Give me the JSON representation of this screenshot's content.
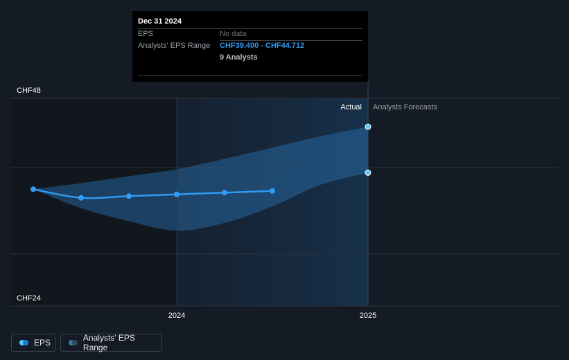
{
  "tooltip": {
    "date": "Dec 31 2024",
    "rows": [
      {
        "label": "EPS",
        "value": "No data"
      },
      {
        "label": "Analysts' EPS Range",
        "value": "CHF39.400 - CHF44.712",
        "sub": "9 Analysts"
      }
    ]
  },
  "legend": {
    "eps": {
      "label": "EPS",
      "color_primary": "#5bc8f5",
      "color_secondary": "#1a7fd4"
    },
    "range": {
      "label": "Analysts' EPS Range",
      "color_primary": "#3a7896",
      "color_secondary": "#2a4d63"
    }
  },
  "chart_data": {
    "type": "line",
    "title": "",
    "y_unit": "CHF",
    "ylim": [
      24,
      48
    ],
    "y_tick_labels": [
      {
        "value": 48,
        "label": "CHF48"
      },
      {
        "value": 24,
        "label": "CHF24"
      }
    ],
    "gridlines": [
      48,
      40,
      30,
      24
    ],
    "x_range": [
      2023.25,
      2026.0
    ],
    "x_tick_labels": [
      {
        "value": 2024.0,
        "label": "2024"
      },
      {
        "value": 2025.0,
        "label": "2025"
      }
    ],
    "region_labels": {
      "actual": "Actual",
      "forecast": "Analysts Forecasts"
    },
    "forecast_start": 2024.0,
    "forecast_end": 2025.0,
    "series": [
      {
        "name": "EPS",
        "color": "#2f9cf5",
        "points": [
          {
            "x": 2023.25,
            "y": 37.5
          },
          {
            "x": 2023.5,
            "y": 36.5
          },
          {
            "x": 2023.75,
            "y": 36.7
          },
          {
            "x": 2024.0,
            "y": 36.9
          },
          {
            "x": 2024.25,
            "y": 37.1
          },
          {
            "x": 2024.5,
            "y": 37.3
          }
        ]
      }
    ],
    "range": {
      "name": "Analysts' EPS Range",
      "upper": [
        {
          "x": 2023.25,
          "y": 37.5
        },
        {
          "x": 2023.5,
          "y": 38.2
        },
        {
          "x": 2023.75,
          "y": 39.0
        },
        {
          "x": 2024.0,
          "y": 39.8
        },
        {
          "x": 2024.25,
          "y": 41.0
        },
        {
          "x": 2024.5,
          "y": 42.3
        },
        {
          "x": 2024.75,
          "y": 43.6
        },
        {
          "x": 2025.0,
          "y": 44.712
        }
      ],
      "lower": [
        {
          "x": 2023.25,
          "y": 37.5
        },
        {
          "x": 2023.5,
          "y": 35.3
        },
        {
          "x": 2023.75,
          "y": 33.8
        },
        {
          "x": 2024.0,
          "y": 32.7
        },
        {
          "x": 2024.25,
          "y": 33.6
        },
        {
          "x": 2024.5,
          "y": 35.5
        },
        {
          "x": 2024.75,
          "y": 38.0
        },
        {
          "x": 2025.0,
          "y": 39.4
        }
      ]
    }
  }
}
